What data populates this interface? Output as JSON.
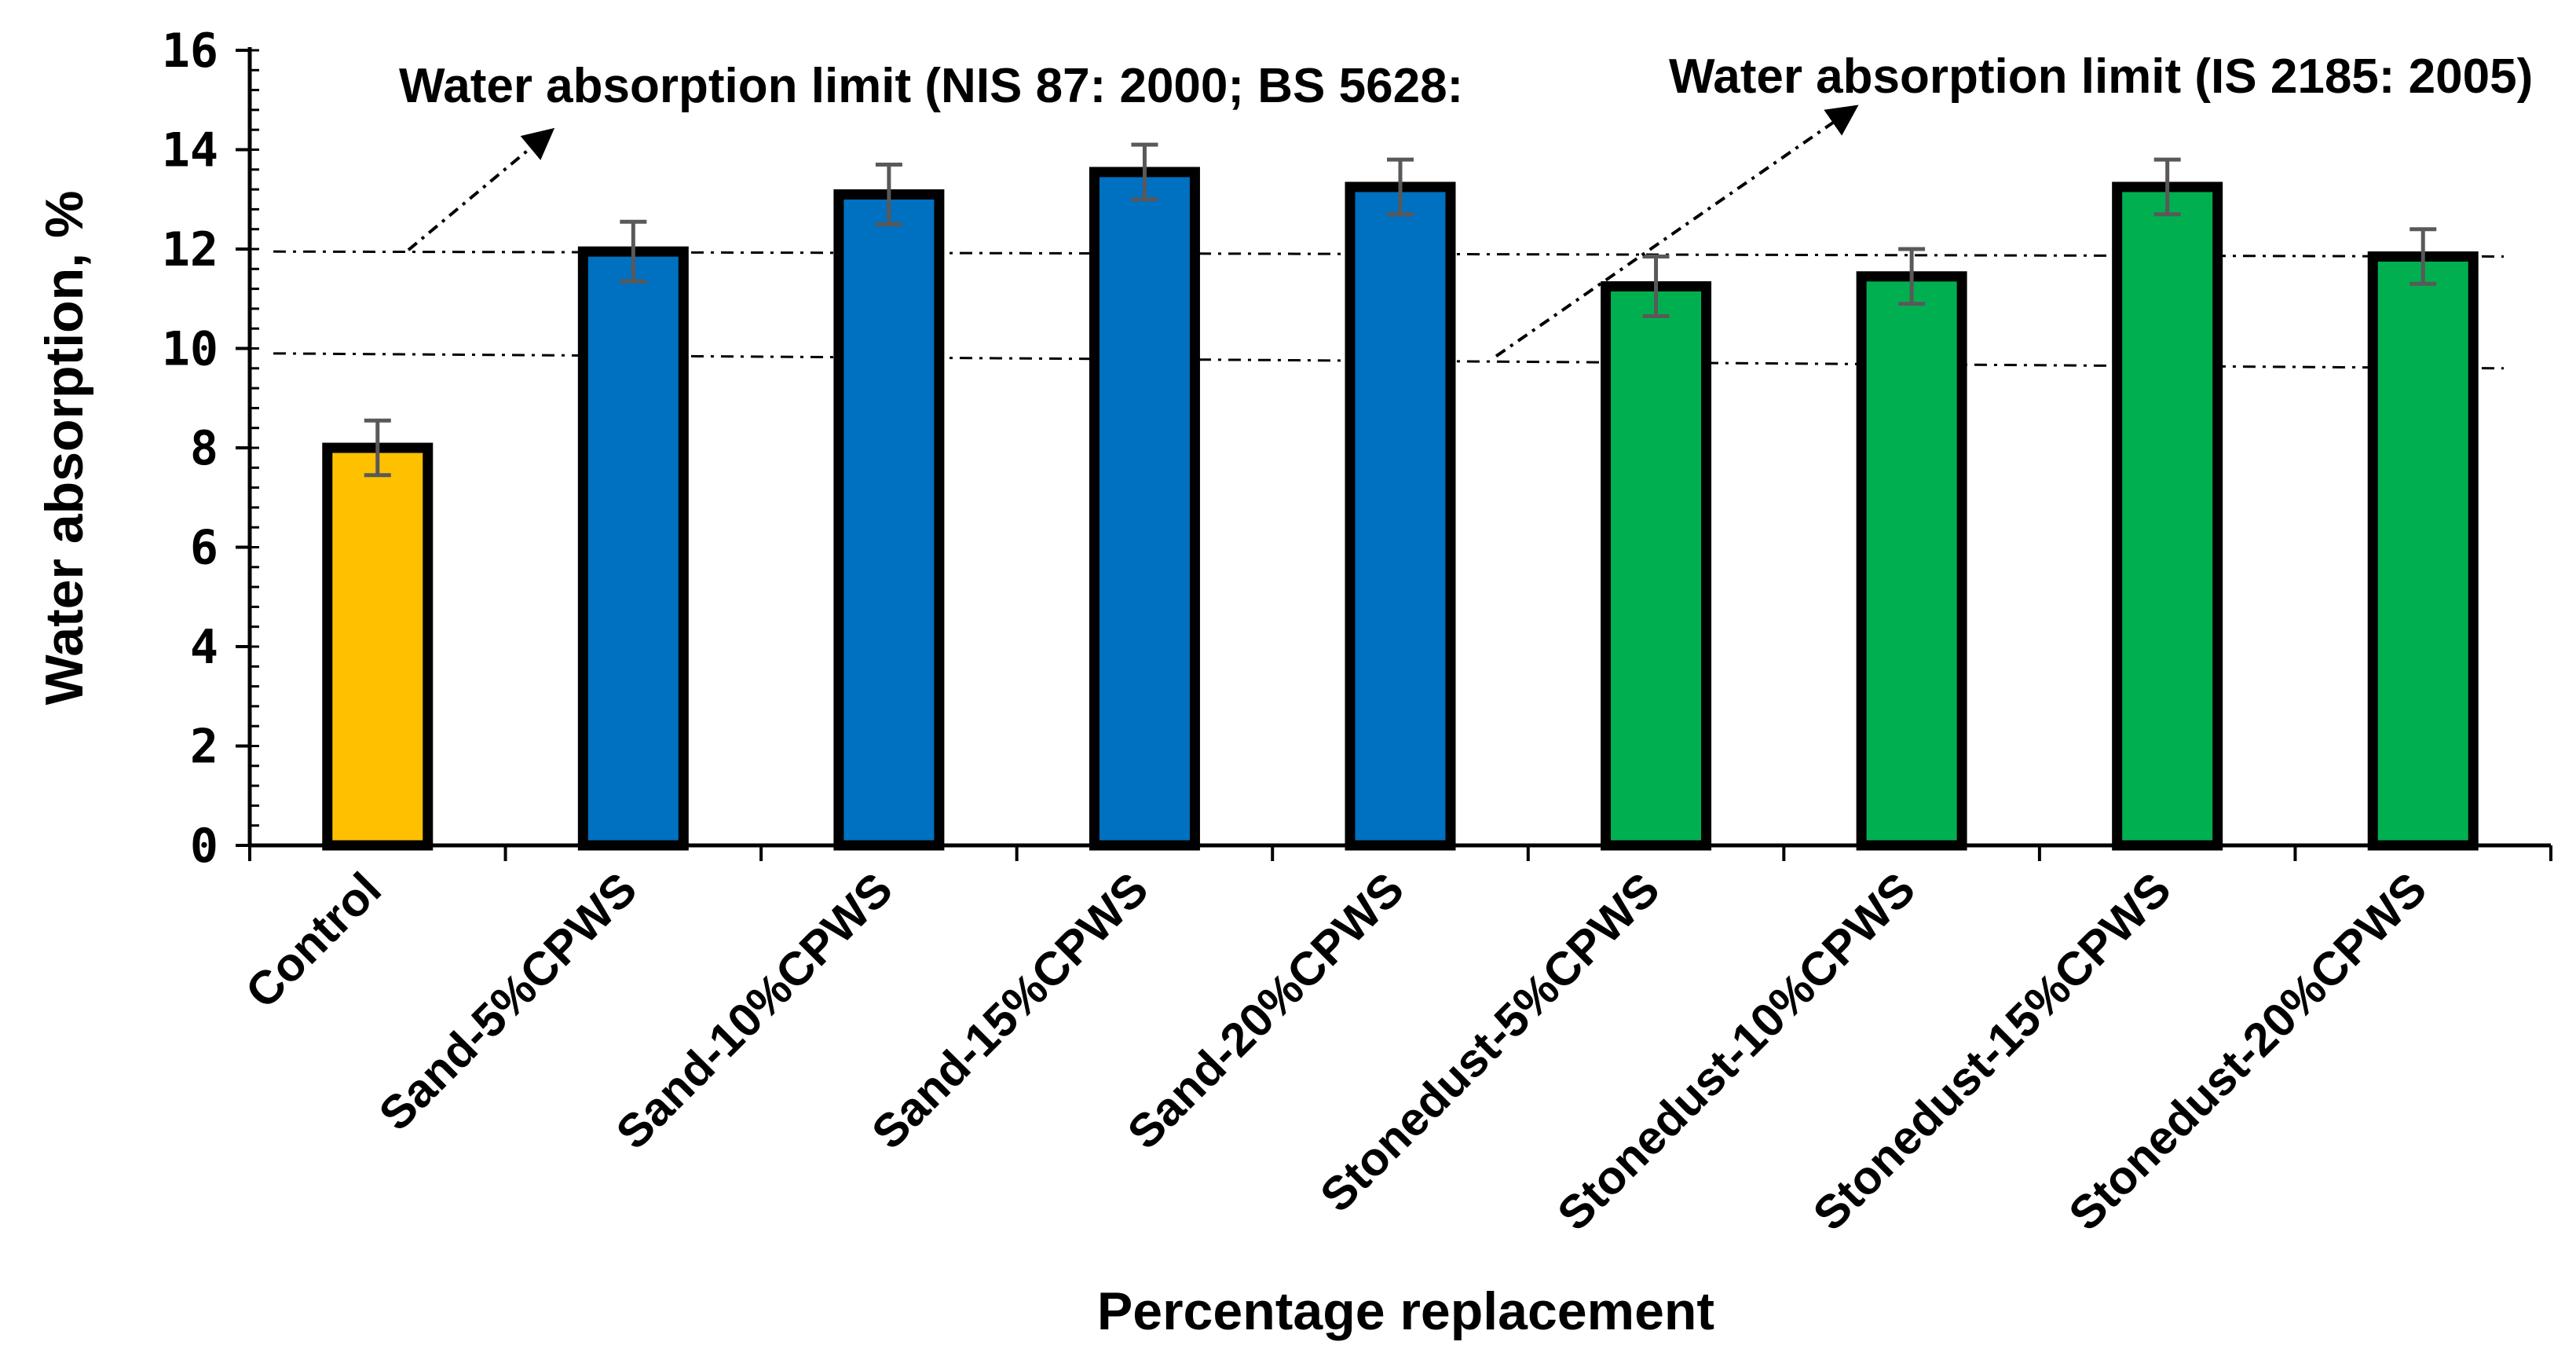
{
  "chart_data": {
    "type": "bar",
    "title": "",
    "xlabel": "Percentage replacement",
    "ylabel": "Water absorption, %",
    "ylim": [
      0,
      16
    ],
    "yticks": [
      0,
      2,
      4,
      6,
      8,
      10,
      12,
      14,
      16
    ],
    "grid": false,
    "categories": [
      "Control",
      "Sand-5%CPWS",
      "Sand-10%CPWS",
      "Sand-15%CPWS",
      "Sand-20%CPWS",
      "Stonedust-5%CPWS",
      "Stonedust-10%CPWS",
      "Stonedust-15%CPWS",
      "Stonedust-20%CPWS"
    ],
    "values": [
      8.0,
      11.95,
      13.1,
      13.55,
      13.25,
      11.25,
      11.45,
      13.25,
      11.85
    ],
    "errors": [
      0.55,
      0.6,
      0.6,
      0.55,
      0.55,
      0.6,
      0.55,
      0.55,
      0.55
    ],
    "bar_colors": [
      "#FFC000",
      "#0070C0",
      "#0070C0",
      "#0070C0",
      "#0070C0",
      "#00B050",
      "#00B050",
      "#00B050",
      "#00B050"
    ],
    "reference_lines": [
      {
        "label": "Water absorption limit (NIS 87: 2000; BS 5628:",
        "y_start": 11.95,
        "y_end": 11.85
      },
      {
        "label": "Water absorption limit (IS 2185: 2005)",
        "y_start": 9.9,
        "y_end": 9.6
      }
    ]
  }
}
